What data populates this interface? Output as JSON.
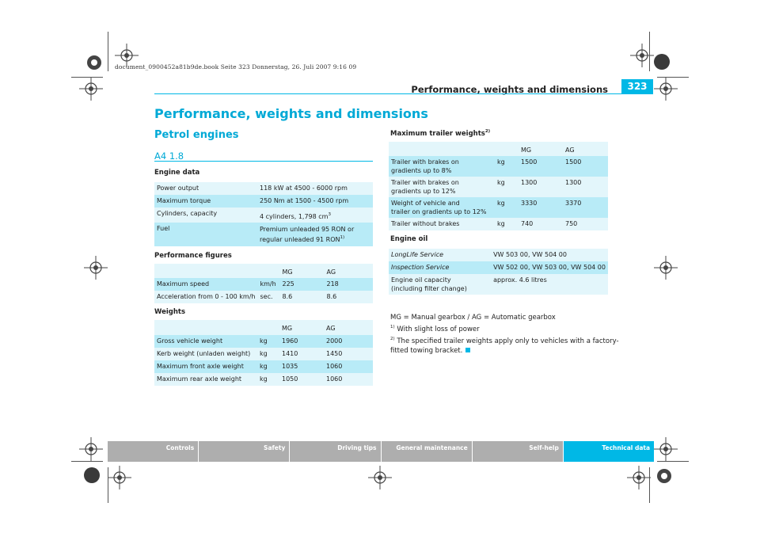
{
  "book_line": "document_0900452a81b9de.book  Seite 323  Donnerstag, 26. Juli 2007  9:16 09",
  "header": {
    "title": "Performance, weights and dimensions",
    "page_number": "323"
  },
  "heading": "Performance, weights and dimensions",
  "subheading": "Petrol engines",
  "model": "A4 1.8",
  "engine_data": {
    "title": "Engine data",
    "rows": [
      {
        "label": "Power output",
        "value": "118 kW at 4500 - 6000 rpm"
      },
      {
        "label": "Maximum torque",
        "value": "250 Nm at 1500 - 4500 rpm"
      },
      {
        "label": "Cylinders, capacity",
        "value": "4 cylinders, 1,798 cm",
        "sup": "3"
      },
      {
        "label": "Fuel",
        "value": "Premium unleaded 95 RON or",
        "value2": "regular unleaded 91 RON",
        "sup": "1)"
      }
    ]
  },
  "performance": {
    "title": "Performance figures",
    "col_mg": "MG",
    "col_ag": "AG",
    "rows": [
      {
        "label": "Maximum speed",
        "unit": "km/h",
        "mg": "225",
        "ag": "218"
      },
      {
        "label": "Acceleration from 0 - 100 km/h",
        "unit": "sec.",
        "mg": "8.6",
        "ag": "8.6"
      }
    ]
  },
  "weights": {
    "title": "Weights",
    "col_mg": "MG",
    "col_ag": "AG",
    "rows": [
      {
        "label": "Gross vehicle weight",
        "unit": "kg",
        "mg": "1960",
        "ag": "2000"
      },
      {
        "label": "Kerb weight (unladen weight)",
        "unit": "kg",
        "mg": "1410",
        "ag": "1450"
      },
      {
        "label": "Maximum front axle weight",
        "unit": "kg",
        "mg": "1035",
        "ag": "1060"
      },
      {
        "label": "Maximum rear axle weight",
        "unit": "kg",
        "mg": "1050",
        "ag": "1060"
      }
    ]
  },
  "trailer": {
    "title": "Maximum trailer weights",
    "title_sup": "2)",
    "col_mg": "MG",
    "col_ag": "AG",
    "rows": [
      {
        "line1": "Trailer with brakes on",
        "line2": "gradients up to 8%",
        "unit": "kg",
        "mg": "1500",
        "ag": "1500"
      },
      {
        "line1": "Trailer with brakes on",
        "line2": "gradients up to 12%",
        "unit": "kg",
        "mg": "1300",
        "ag": "1300"
      },
      {
        "line1": "Weight of vehicle and",
        "line2": "trailer on gradients up to 12%",
        "unit": "kg",
        "mg": "3330",
        "ag": "3370"
      },
      {
        "line1": "Trailer without brakes",
        "line2": "",
        "unit": "kg",
        "mg": "740",
        "ag": "750"
      }
    ]
  },
  "engine_oil": {
    "title": "Engine oil",
    "rows": [
      {
        "label": "LongLife Service",
        "value": "VW 503 00, VW 504 00"
      },
      {
        "label": "Inspection Service",
        "value": "VW 502 00, VW 503 00, VW 504 00"
      },
      {
        "label": "Engine oil capacity",
        "label2": "(including filter change)",
        "value": "approx. 4.6 litres"
      }
    ]
  },
  "notes": {
    "legend": "MG = Manual gearbox / AG = Automatic gearbox",
    "fn1_mark": "1)",
    "fn1": "With slight loss of power",
    "fn2_mark": "2)",
    "fn2": "The specified trailer weights apply only to vehicles with a factory-fitted towing bracket."
  },
  "nav": [
    "Controls",
    "Safety",
    "Driving tips",
    "General maintenance",
    "Self-help",
    "Technical data"
  ],
  "colors": {
    "accent": "#00b8e6",
    "row_light": "#e3f6fb",
    "row_dark": "#b8ebf7",
    "nav_gray": "#aeaeae"
  }
}
